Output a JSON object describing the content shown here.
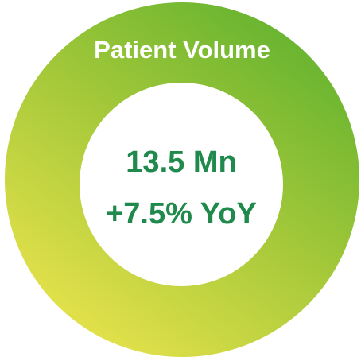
{
  "kpi": {
    "title": "Patient Volume",
    "value": "13.5 Mn",
    "change": "+7.5% YoY"
  }
}
